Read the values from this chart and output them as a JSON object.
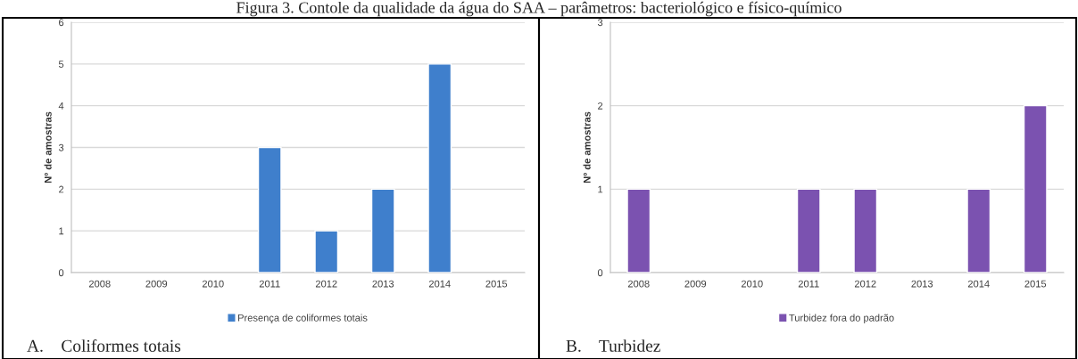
{
  "chart_data": [
    {
      "type": "bar",
      "title": "Figura 3. Contole da qualidade da água do SAA – parâmetros: bacteriológico e físico-químico",
      "ylabel": "Nº de amostras",
      "categories": [
        "2008",
        "2009",
        "2010",
        "2011",
        "2012",
        "2013",
        "2014",
        "2015"
      ],
      "series": [
        {
          "name": "Presença de coliformes totais",
          "color": "#3f7fcc",
          "values": [
            0,
            0,
            0,
            3,
            1,
            2,
            5,
            0
          ]
        }
      ],
      "ylim": [
        0,
        6
      ],
      "yticks": [
        0,
        1,
        2,
        3,
        4,
        5,
        6
      ],
      "grid": "y",
      "legend": "bottom",
      "annotations": [
        "A.    Coliformes totais"
      ]
    },
    {
      "type": "bar",
      "ylabel": "Nº de amostras",
      "categories": [
        "2008",
        "2009",
        "2010",
        "2011",
        "2012",
        "2013",
        "2014",
        "2015"
      ],
      "series": [
        {
          "name": "Turbidez fora do padrão",
          "color": "#7b52b0",
          "values": [
            1,
            0,
            0,
            1,
            1,
            0,
            1,
            2
          ]
        }
      ],
      "ylim": [
        0,
        3
      ],
      "yticks": [
        0,
        1,
        2,
        3
      ],
      "grid": "y",
      "legend": "bottom",
      "annotations": [
        "B.    Turbidez"
      ]
    }
  ]
}
